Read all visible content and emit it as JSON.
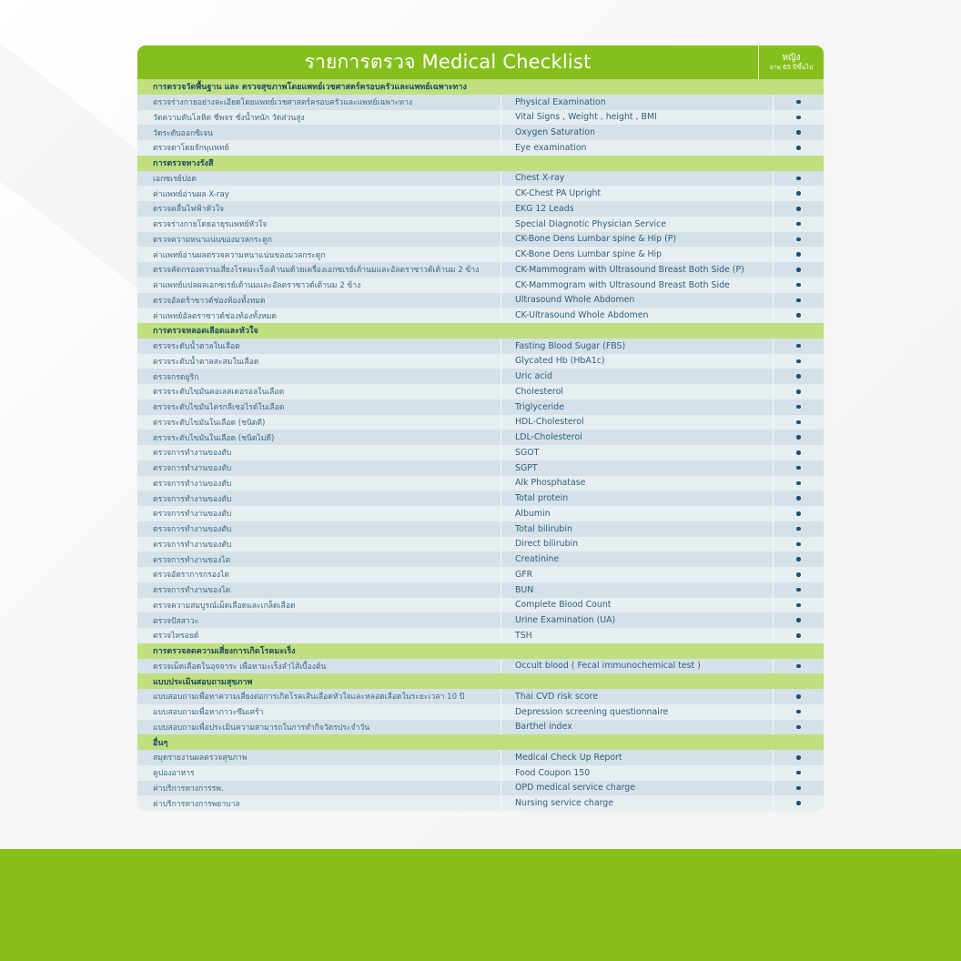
{
  "header": {
    "title": "รายการตรวจ  Medical Checklist",
    "column": {
      "label": "หญิง",
      "sublabel": "อายุ 65 ปีขึ้นไป"
    }
  },
  "colors": {
    "header_green": "#85bf1c",
    "section_green": "#c0df7e",
    "band_green": "#86c019",
    "dot": "#1d4f72"
  },
  "sections": [
    {
      "title": "การตรวจวัดพื้นฐาน และ ตรวจสุขภาพโดยแพทย์เวชศาสตร์ครอบครัวและแพทย์เฉพาะทาง",
      "items": [
        {
          "th": "ตรวจร่างกายอย่างละเอียดโดยแพทย์เวชศาสตร์ครอบครัวและแพทย์เฉพาะทาง",
          "en": "Physical Examination",
          "mark": "•"
        },
        {
          "th": "วัดความดันโลหิต ชีพจร ชั่งน้ำหนัก วัดส่วนสูง",
          "en": "Vital Signs , Weight , height , BMI",
          "mark": "•"
        },
        {
          "th": "วัดระดับออกซิเจน",
          "en": "Oxygen Saturation",
          "mark": "•"
        },
        {
          "th": "ตรวจตาโดยจักษุแพทย์",
          "en": "Eye examination",
          "mark": "•"
        }
      ]
    },
    {
      "title": "การตรวจทางรังสี",
      "items": [
        {
          "th": "เอกซเรย์ปอด",
          "en": "Chest X-ray",
          "mark": "•"
        },
        {
          "th": "ค่าแพทย์อ่านผล X-ray",
          "en": "CK-Chest PA Upright",
          "mark": "•"
        },
        {
          "th": "ตรวจคลื่นไฟฟ้าหัวใจ",
          "en": "EKG 12 Leads",
          "mark": "•"
        },
        {
          "th": "ตรวจร่างกายโดยอายุรแพทย์หัวใจ",
          "en": "Special Diagnotic Physician Service",
          "mark": "•"
        },
        {
          "th": "ตรวจความหนาแน่นของมวลกระดูก",
          "en": "CK-Bone Dens Lumbar spine & Hip  (P)",
          "mark": "•"
        },
        {
          "th": "ค่าแพทย์อ่านผลตรวจความหนาแน่นของมวลกระดูก",
          "en": "CK-Bone Dens Lumbar spine & Hip",
          "mark": "•"
        },
        {
          "th": "ตรวจคัดกรองความเสี่ยงโรคมะเร็งเต้านมด้วยเครื่องเอกซเรย์เต้านมและอัลตราซาวด์เต้านม 2 ข้าง",
          "en": "CK-Mammogram with Ultrasound Breast Both Side (P)",
          "mark": "•"
        },
        {
          "th": "ค่าแพทย์แปลผลเอกซเรย์เต้านมและอัลตราซาวด์เต้านม 2 ข้าง",
          "en": "CK-Mammogram with Ultrasound Breast Both Side",
          "mark": "•"
        },
        {
          "th": "ตรวจอัลตร้าซาวด์ช่องท้องทั้งหมด",
          "en": "Ultrasound Whole Abdomen",
          "mark": "•"
        },
        {
          "th": "ค่าแพทย์อัลตราซาวด์ช่องท้องทั้งหมด",
          "en": "CK-Ultrasound Whole Abdomen",
          "mark": "•"
        }
      ]
    },
    {
      "title": "การตรวจหลอดเลือดและหัวใจ",
      "items": [
        {
          "th": "ตรวจระดับน้ำตาลในเลือด",
          "en": "Fasting Blood Sugar (FBS)",
          "mark": "•"
        },
        {
          "th": "ตรวจระดับน้ำตาลสะสมในเลือด",
          "en": "Glycated Hb (HbA1c)",
          "mark": "•"
        },
        {
          "th": "ตรวจกรดยูริก",
          "en": "Uric acid",
          "mark": "•"
        },
        {
          "th": "ตรวจระดับไขมันคอเลสเตอรอลในเลือด",
          "en": "Cholesterol",
          "mark": "•"
        },
        {
          "th": "ตรวจระดับไขมันไตรกลีเซอไรด์ในเลือด",
          "en": "Triglyceride",
          "mark": "•"
        },
        {
          "th": "ตรวจระดับไขมันในเลือด (ชนิดดี)",
          "en": "HDL-Cholesterol",
          "mark": "•"
        },
        {
          "th": "ตรวจระดับไขมันในเลือด (ชนิดไม่ดี)",
          "en": "LDL-Cholesterol",
          "mark": "•"
        },
        {
          "th": "ตรวจการทำงานของตับ",
          "en": "SGOT",
          "mark": "•"
        },
        {
          "th": "ตรวจการทำงานของตับ",
          "en": "SGPT",
          "mark": "•"
        },
        {
          "th": "ตรวจการทำงานของตับ",
          "en": "Alk Phosphatase",
          "mark": "•"
        },
        {
          "th": "ตรวจการทำงานของตับ",
          "en": "Total protein",
          "mark": "•"
        },
        {
          "th": "ตรวจการทำงานของตับ",
          "en": "Albumin",
          "mark": "•"
        },
        {
          "th": "ตรวจการทำงานของตับ",
          "en": "Total bilirubin",
          "mark": "•"
        },
        {
          "th": "ตรวจการทำงานของตับ",
          "en": "Direct bilirubin",
          "mark": "•"
        },
        {
          "th": "ตรวจการทำงานของไต",
          "en": "Creatinine",
          "mark": "•"
        },
        {
          "th": "ตรวจอัตราการกรองไต",
          "en": "GFR",
          "mark": "•"
        },
        {
          "th": "ตรวจการทำงานของไต",
          "en": "BUN",
          "mark": "•"
        },
        {
          "th": "ตรวจความสมบูรณ์เม็ดเลือดและเกล็ดเลือด",
          "en": "Complete Blood Count",
          "mark": "•"
        },
        {
          "th": "ตรวจปัสสาวะ",
          "en": "Urine Examination (UA)",
          "mark": "•"
        },
        {
          "th": "ตรวจไทรอยด์",
          "en": "TSH",
          "mark": "•"
        }
      ]
    },
    {
      "title": "การตรวจลดความเสี่ยงการเกิดโรคมะเร็ง",
      "items": [
        {
          "th": "ตรวจเม็ดเลือดในอุจจาระ เพื่อหามะเร็งลำไส้เบื้องต้น",
          "en": "Occult blood ( Fecal immunochemical test )",
          "mark": "•"
        }
      ]
    },
    {
      "title": "แบบประเมินสอบถามสุขภาพ",
      "items": [
        {
          "th": "แบบสอบถามเพื่อหาความเสี่ยงต่อการเกิดโรคเส้นเลือดหัวใจและหลอดเลือดในระยะเวลา 10 ปี",
          "en": "Thai CVD risk score",
          "mark": "•"
        },
        {
          "th": "แบบสอบถามเพื่อหาภาวะซึมเศร้า",
          "en": "Depression screening questionnaire",
          "mark": "•"
        },
        {
          "th": "แบบสอบถามเพื่อประเมินความสามารถในการทำกิจวัตรประจำวัน",
          "en": "Barthel index",
          "mark": "•"
        }
      ]
    },
    {
      "title": "อื่นๆ",
      "items": [
        {
          "th": "สมุดรายงานผลตรวจสุขภาพ",
          "en": "Medical Check Up Report",
          "mark": "•"
        },
        {
          "th": "คูปองอาหาร",
          "en": "Food Coupon 150",
          "mark": "•"
        },
        {
          "th": "ค่าบริการทางการรพ.",
          "en": "OPD medical service charge",
          "mark": "•"
        },
        {
          "th": "ค่าบริการทางการพยาบาล",
          "en": "Nursing service charge",
          "mark": "•"
        }
      ]
    }
  ]
}
